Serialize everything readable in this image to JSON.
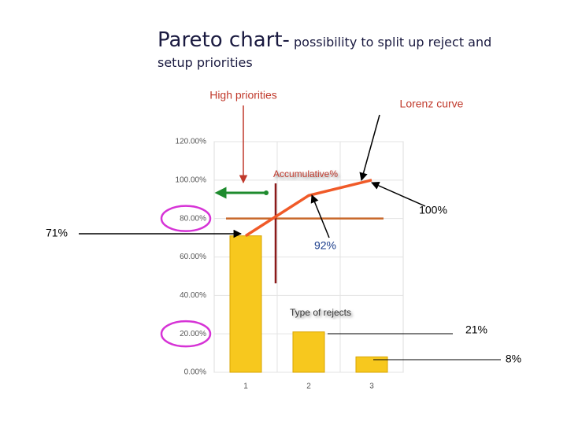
{
  "chart_data": {
    "type": "pareto",
    "title": "Pareto chart-",
    "subtitle": "possibility to split up reject and setup priorities",
    "categories": [
      "1",
      "2",
      "3"
    ],
    "series": [
      {
        "name": "Type of rejects",
        "color": "#f7c81e",
        "values": [
          71,
          21,
          8
        ],
        "value_labels": [
          "71%",
          "21%",
          "8%"
        ]
      },
      {
        "name": "Accumulative%",
        "color": "#f05a28",
        "values": [
          71,
          92,
          100
        ],
        "value_labels": [
          null,
          "92%",
          "100%"
        ]
      }
    ],
    "ylim": [
      0,
      120
    ],
    "yticks": [
      {
        "value": 0,
        "label": "0.00%"
      },
      {
        "value": 20,
        "label": "20.00%"
      },
      {
        "value": 40,
        "label": "40.00%"
      },
      {
        "value": 60,
        "label": "60.00%"
      },
      {
        "value": 80,
        "label": "80.00%"
      },
      {
        "value": 100,
        "label": "100.00%"
      },
      {
        "value": 120,
        "label": "120.00%"
      }
    ],
    "threshold": 80,
    "grid": true,
    "annotations": [
      "High priorities",
      "Lorenz curve"
    ]
  }
}
